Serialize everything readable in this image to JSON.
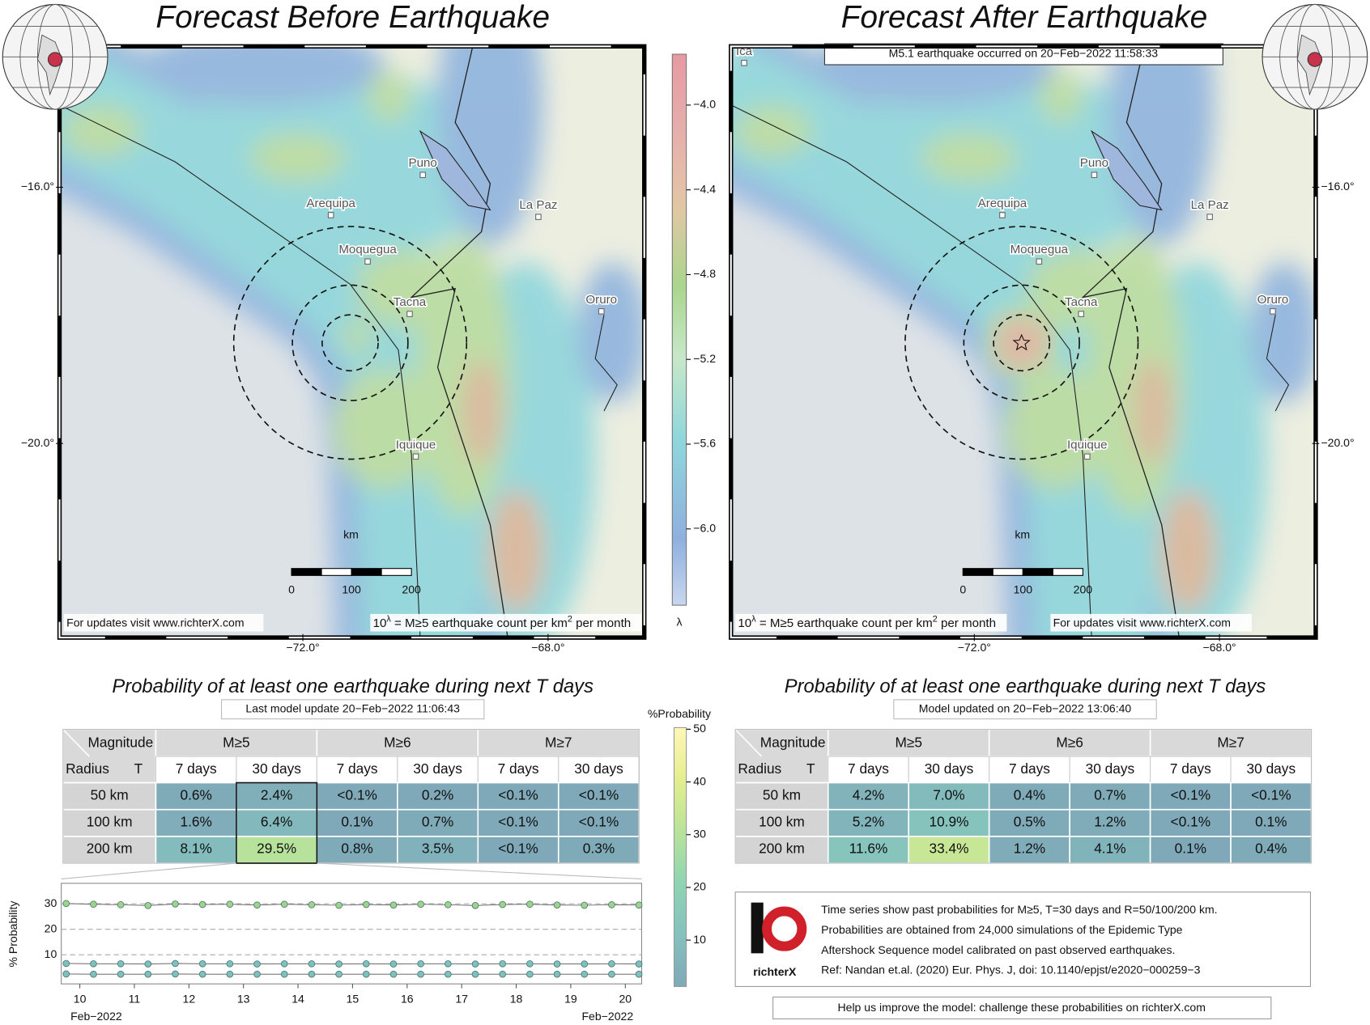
{
  "maps": [
    {
      "title": "Forecast Before Earthquake",
      "update_note": "For updates visit www.richterX.com",
      "lambda_note": {
        "base": "10",
        "exp": "λ",
        "text": " = M≥5 earthquake count per km",
        "sup": "2",
        "tail": " per month"
      },
      "cities": [
        "Arequipa",
        "Puno",
        "La Paz",
        "Moquegua",
        "Tacna",
        "Oruro",
        "Iquique"
      ]
    },
    {
      "title": "Forecast After Earthquake",
      "banner": "M5.1 earthquake occurred on 20−Feb−2022 11:58:33",
      "update_note": "For updates visit www.richterX.com",
      "lambda_note": {
        "base": "10",
        "exp": "λ",
        "text": " = M≥5 earthquake count per km",
        "sup": "2",
        "tail": " per month"
      },
      "cities": [
        "Ica",
        "Arequipa",
        "Puno",
        "La Paz",
        "Moquegua",
        "Tacna",
        "Oruro",
        "Iquique"
      ]
    }
  ],
  "lat_lim": [
    -23.03,
    -13.8
  ],
  "lat_ticks": [
    {
      "value": -16,
      "label": "−16.0°"
    },
    {
      "value": -20,
      "label": "−20.0°"
    }
  ],
  "lon_lim": [
    -75.97,
    -66.43
  ],
  "lon_ticks": [
    {
      "value": -72,
      "label": "−72.0°"
    },
    {
      "value": -68,
      "label": "−68.0°"
    }
  ],
  "scale_bar": {
    "labels": [
      "0",
      "100",
      "200"
    ],
    "unit": "km"
  },
  "lambda_colorbar": {
    "label": "λ",
    "lim": [
      -6.36,
      -3.76
    ],
    "ticks": [
      {
        "value": -4.0,
        "label": "−4.0"
      },
      {
        "value": -4.4,
        "label": "−4.4"
      },
      {
        "value": -4.8,
        "label": "−4.8"
      },
      {
        "value": -5.2,
        "label": "−5.2"
      },
      {
        "value": -5.6,
        "label": "−5.6"
      },
      {
        "value": -6.0,
        "label": "−6.0"
      }
    ]
  },
  "probability_colorbar": {
    "label": "%Probability",
    "lim": [
      1.2,
      50.3
    ],
    "ticks": [
      10,
      20,
      30,
      40,
      50
    ]
  },
  "tables": [
    {
      "title": "Probability of at least one earthquake during next T days",
      "subtitle": "Last model update 20−Feb−2022 11:06:43",
      "magnitude_label": "Magnitude",
      "radius_label": "Radius",
      "t_label": "T",
      "magnitudes": [
        "M≥5",
        "M≥6",
        "M≥7"
      ],
      "durations": [
        "7 days",
        "30 days",
        "7 days",
        "30 days",
        "7 days",
        "30 days"
      ],
      "rows": [
        [
          "50 km",
          "0.6%",
          "2.4%",
          "<0.1%",
          "0.2%",
          "<0.1%",
          "<0.1%"
        ],
        [
          "100 km",
          "1.6%",
          "6.4%",
          "0.1%",
          "0.7%",
          "<0.1%",
          "<0.1%"
        ],
        [
          "200 km",
          "8.1%",
          "29.5%",
          "0.8%",
          "3.5%",
          "<0.1%",
          "0.3%"
        ]
      ]
    },
    {
      "title": "Probability of at least one earthquake during next T days",
      "subtitle": "Model updated on 20−Feb−2022 13:06:40",
      "magnitude_label": "Magnitude",
      "radius_label": "Radius",
      "t_label": "T",
      "magnitudes": [
        "M≥5",
        "M≥6",
        "M≥7"
      ],
      "durations": [
        "7 days",
        "30 days",
        "7 days",
        "30 days",
        "7 days",
        "30 days"
      ],
      "rows": [
        [
          "50 km",
          "4.2%",
          "7.0%",
          "0.4%",
          "0.7%",
          "<0.1%",
          "<0.1%"
        ],
        [
          "100 km",
          "5.2%",
          "10.9%",
          "0.5%",
          "1.2%",
          "<0.1%",
          "0.1%"
        ],
        [
          "200 km",
          "11.6%",
          "33.4%",
          "1.2%",
          "4.1%",
          "0.1%",
          "0.4%"
        ]
      ]
    }
  ],
  "chart_data": {
    "type": "line",
    "y_label": "% Probability",
    "x_end_labels": [
      "Feb−2022",
      "Feb−2022"
    ],
    "x": [
      9.75,
      10.25,
      10.75,
      11.25,
      11.75,
      12.25,
      12.75,
      13.25,
      13.75,
      14.25,
      14.75,
      15.25,
      15.75,
      16.25,
      16.75,
      17.25,
      17.75,
      18.25,
      18.75,
      19.25,
      19.75,
      20.25
    ],
    "xlim": [
      9.66,
      20.3
    ],
    "xticks": [
      10,
      11,
      12,
      13,
      14,
      15,
      16,
      17,
      18,
      19,
      20
    ],
    "ylim": [
      -1.4,
      38
    ],
    "yticks": [
      10,
      20,
      30
    ],
    "grid": true,
    "series": [
      {
        "color": "#9ed48a",
        "values": [
          30.1,
          29.8,
          29.6,
          29.3,
          29.9,
          29.7,
          29.8,
          29.5,
          29.8,
          29.6,
          29.4,
          29.7,
          29.5,
          29.8,
          29.6,
          29.3,
          29.7,
          29.8,
          29.5,
          29.4,
          29.6,
          29.5
        ]
      },
      {
        "color": "#7fc0bf",
        "values": [
          6.6,
          6.5,
          6.5,
          6.4,
          6.6,
          6.5,
          6.5,
          6.4,
          6.5,
          6.5,
          6.4,
          6.5,
          6.4,
          6.5,
          6.5,
          6.4,
          6.5,
          6.5,
          6.4,
          6.4,
          6.5,
          6.4
        ]
      },
      {
        "color": "#7fc0bf",
        "values": [
          2.5,
          2.4,
          2.4,
          2.4,
          2.5,
          2.4,
          2.4,
          2.4,
          2.4,
          2.4,
          2.4,
          2.4,
          2.4,
          2.4,
          2.4,
          2.4,
          2.4,
          2.4,
          2.4,
          2.4,
          2.4,
          2.4
        ]
      }
    ]
  },
  "info": {
    "lines": [
      "Time series show past probabilities for M≥5, T=30 days and R=50/100/200 km.",
      "Probabilities are obtained from 24,000 simulations of the Epidemic Type",
      "Aftershock Sequence model calibrated on past observed earthquakes.",
      "Ref: Nandan et.al. (2020) Eur. Phys. J, doi: 10.1140/epjst/e2020−000259−3"
    ],
    "logo": "richterX",
    "footer": "Help us improve the model: challenge these probabilities on richterX.com"
  }
}
